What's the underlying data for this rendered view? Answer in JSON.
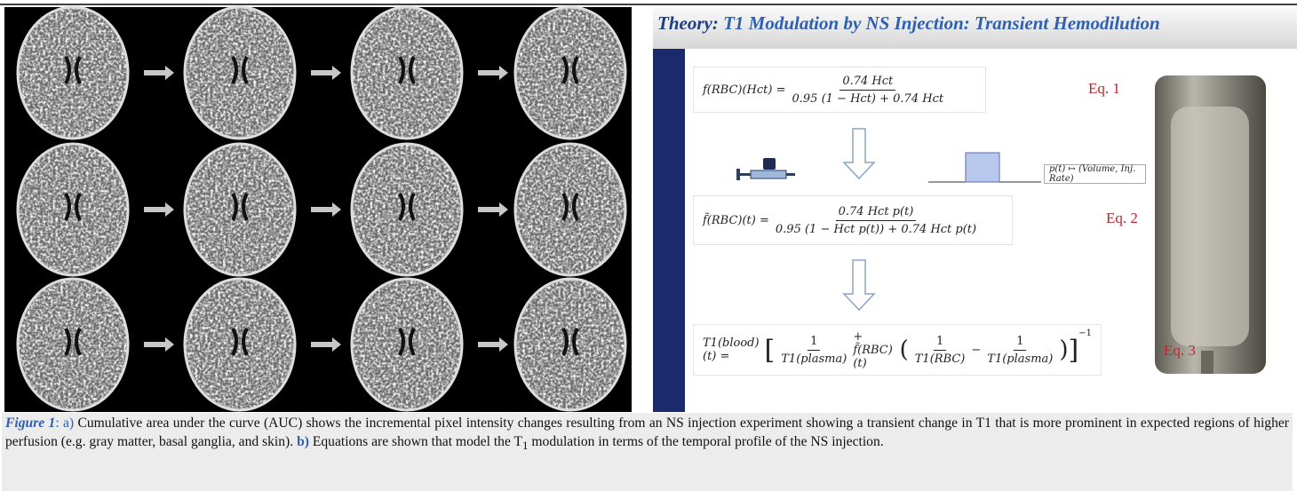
{
  "slide": {
    "title_lead": "Theory:",
    "title": "T1 Modulation by NS Injection: Transient Hemodilution",
    "eq1": {
      "lhs": "f(RBC)(Hct) =",
      "num": "0.74 Hct",
      "den": "0.95 (1 − Hct) + 0.74 Hct",
      "label": "Eq. 1"
    },
    "pulse_label": "p(t) ↦ (Volume, Inj. Rate)",
    "eq2": {
      "lhs": "f̃(RBC)(t) =",
      "num": "0.74 Hct p(t)",
      "den": "0.95 (1 − Hct p(t)) + 0.74 Hct p(t)",
      "label": "Eq. 2"
    },
    "eq3": {
      "lhs": "T1(blood)(t) =",
      "one": "1",
      "t_plasma": "T1(plasma)",
      "f": "+ f̃(RBC)(t)",
      "t_rbc": "T1(RBC)",
      "minus": "−",
      "exp": "−1",
      "label": "Eq. 3"
    }
  },
  "caption": {
    "figure": "Figure 1",
    "a_lead": ": a)",
    "a_text": "Cumulative area under the curve (AUC) shows the incremental pixel intensity changes resulting from an NS injection experiment showing a transient change in T1 that is more prominent in expected regions of higher perfusion (e.g. gray matter, basal ganglia, and skin).",
    "b_lead": "b)",
    "b_text_1": "Equations are shown that model the T",
    "b_sub": "1",
    "b_text_2": "modulation in terms of the temporal profile of the NS injection."
  }
}
